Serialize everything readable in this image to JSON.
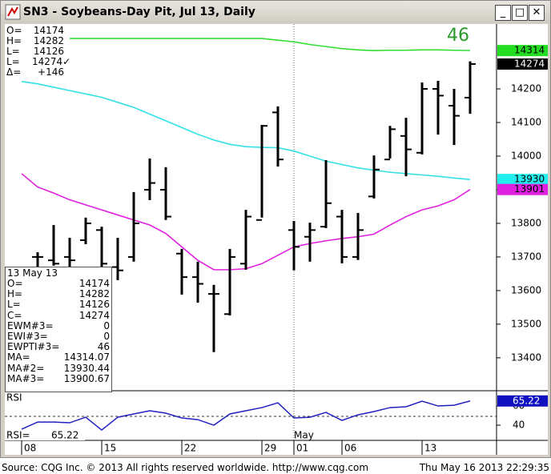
{
  "window": {
    "title": "SN3 - Soybeans-Day Pit, Jul 13, Daily"
  },
  "quote": [
    [
      "O=",
      "14174"
    ],
    [
      "H=",
      "14282"
    ],
    [
      "L=",
      "14126"
    ],
    [
      "L=",
      "14274✓"
    ],
    [
      "Δ=",
      "+146"
    ]
  ],
  "wave_count": "46",
  "info_box": {
    "date": "13 May 13",
    "rows": [
      [
        "O=",
        "14174"
      ],
      [
        "H=",
        "14282"
      ],
      [
        "L=",
        "14126"
      ],
      [
        "C=",
        "14274"
      ],
      [
        "EWM#3=",
        "0"
      ],
      [
        "EWI#3=",
        "0"
      ],
      [
        "EWPTI#3=",
        "46"
      ],
      [
        "MA=",
        "14314.07"
      ],
      [
        "MA#2=",
        "13930.44"
      ],
      [
        "MA#3=",
        "13900.67"
      ]
    ]
  },
  "chart_data": [
    {
      "type": "ohlc",
      "categories": [
        "08",
        null,
        null,
        null,
        null,
        "15",
        null,
        null,
        null,
        null,
        "22",
        null,
        null,
        null,
        null,
        "29",
        null,
        "01",
        null,
        null,
        "06",
        null,
        null,
        null,
        null,
        "13",
        null,
        null,
        null
      ],
      "x_group_labels": [
        null,
        null,
        null,
        null,
        null,
        null,
        null,
        null,
        null,
        null,
        null,
        null,
        null,
        null,
        null,
        null,
        null,
        "May",
        null,
        null,
        null,
        null,
        null,
        null,
        null,
        null,
        null,
        null,
        null
      ],
      "open": [
        null,
        13700,
        13690,
        13700,
        13750,
        13780,
        13670,
        13700,
        13900,
        13900,
        13710,
        13640,
        13590,
        13530,
        13680,
        13810,
        14130,
        13780,
        13760,
        13790,
        13820,
        13700,
        13880,
        13990,
        14060,
        14010,
        14200,
        14150,
        14174
      ],
      "high": [
        null,
        13714,
        13795,
        13757,
        13817,
        13790,
        13757,
        13893,
        13993,
        13967,
        13724,
        13686,
        13617,
        13724,
        13840,
        14093,
        14148,
        13807,
        13802,
        13988,
        13840,
        13831,
        14002,
        14090,
        14114,
        14219,
        14224,
        14200,
        14282
      ],
      "low": [
        null,
        13643,
        13674,
        13671,
        13738,
        13664,
        13631,
        13686,
        13869,
        13810,
        13588,
        13564,
        13417,
        13526,
        13662,
        13817,
        13969,
        13660,
        13686,
        13786,
        13681,
        13691,
        13874,
        13993,
        13940,
        14005,
        14064,
        14033,
        14126
      ],
      "close": [
        null,
        13700,
        13680,
        13690,
        13800,
        13680,
        13660,
        13800,
        13920,
        13820,
        13640,
        13620,
        13590,
        13700,
        13820,
        14090,
        13990,
        13730,
        13780,
        13860,
        13700,
        13780,
        13960,
        14080,
        14020,
        14200,
        14180,
        14120,
        14274
      ],
      "bar_color": "#000000",
      "series": [
        {
          "name": "MA",
          "color": "#33dd33",
          "values": [
            null,
            null,
            null,
            14350,
            14350,
            14350,
            14350,
            14350,
            14350,
            14350,
            14350,
            14350,
            14350,
            14350,
            14350,
            14350,
            14345,
            14340,
            14332,
            14326,
            14320,
            14316,
            14314,
            14315,
            14315,
            14316,
            14316,
            14315,
            14314.07
          ]
        },
        {
          "name": "MA#2",
          "color": "#33e0e6",
          "values": [
            14222,
            14215,
            14205,
            14195,
            14185,
            14175,
            14160,
            14145,
            14125,
            14105,
            14085,
            14065,
            14048,
            14035,
            14028,
            14026,
            14025,
            14015,
            14000,
            13985,
            13975,
            13965,
            13958,
            13952,
            13948,
            13944,
            13940,
            13935,
            13930.44
          ]
        },
        {
          "name": "MA#3",
          "color": "#e020e0",
          "values": [
            13948,
            13908,
            13890,
            13870,
            13855,
            13840,
            13825,
            13810,
            13795,
            13770,
            13730,
            13690,
            13662,
            13662,
            13665,
            13680,
            13705,
            13730,
            13740,
            13748,
            13755,
            13760,
            13768,
            13795,
            13820,
            13840,
            13852,
            13870,
            13900.67
          ]
        }
      ],
      "price_tags": [
        {
          "value": 14314.07,
          "label": "14314"
        },
        14274,
        {
          "value": 13930.44,
          "label": "13930"
        },
        {
          "value": 13900.67,
          "label": "13901"
        }
      ],
      "price_tag_colors": [
        "#22dd22",
        "#000000",
        "#22eeee",
        "#e020e0"
      ],
      "price_tag_text_colors": [
        "#000000",
        "#ffffff",
        "#000000",
        "#000000"
      ],
      "ylim": [
        13302,
        14393
      ],
      "yticks": [
        13400,
        13500,
        13600,
        13700,
        13800,
        13900,
        14000,
        14100,
        14200
      ]
    },
    {
      "type": "line",
      "title": "RSI",
      "name": "RSI=",
      "color": "#2020c0",
      "values": [
        35.8,
        43.3,
        43.3,
        42.5,
        48.3,
        35,
        48.3,
        51.7,
        55,
        52.5,
        47.5,
        45.8,
        40,
        51.7,
        55,
        58.3,
        63.3,
        47.5,
        48.3,
        53.3,
        45,
        50.8,
        54.2,
        58.3,
        59.2,
        65,
        60,
        60.8,
        65.22
      ],
      "value_label": "65.22",
      "ylim": [
        24.2,
        74.2
      ],
      "yticks": [
        40,
        60
      ]
    }
  ],
  "footer": {
    "left": "Source: CQG Inc. © 2013 All rights reserved worldwide.  http://www.cqg.com",
    "right": "Thu May 16 2013 22:29:35"
  }
}
